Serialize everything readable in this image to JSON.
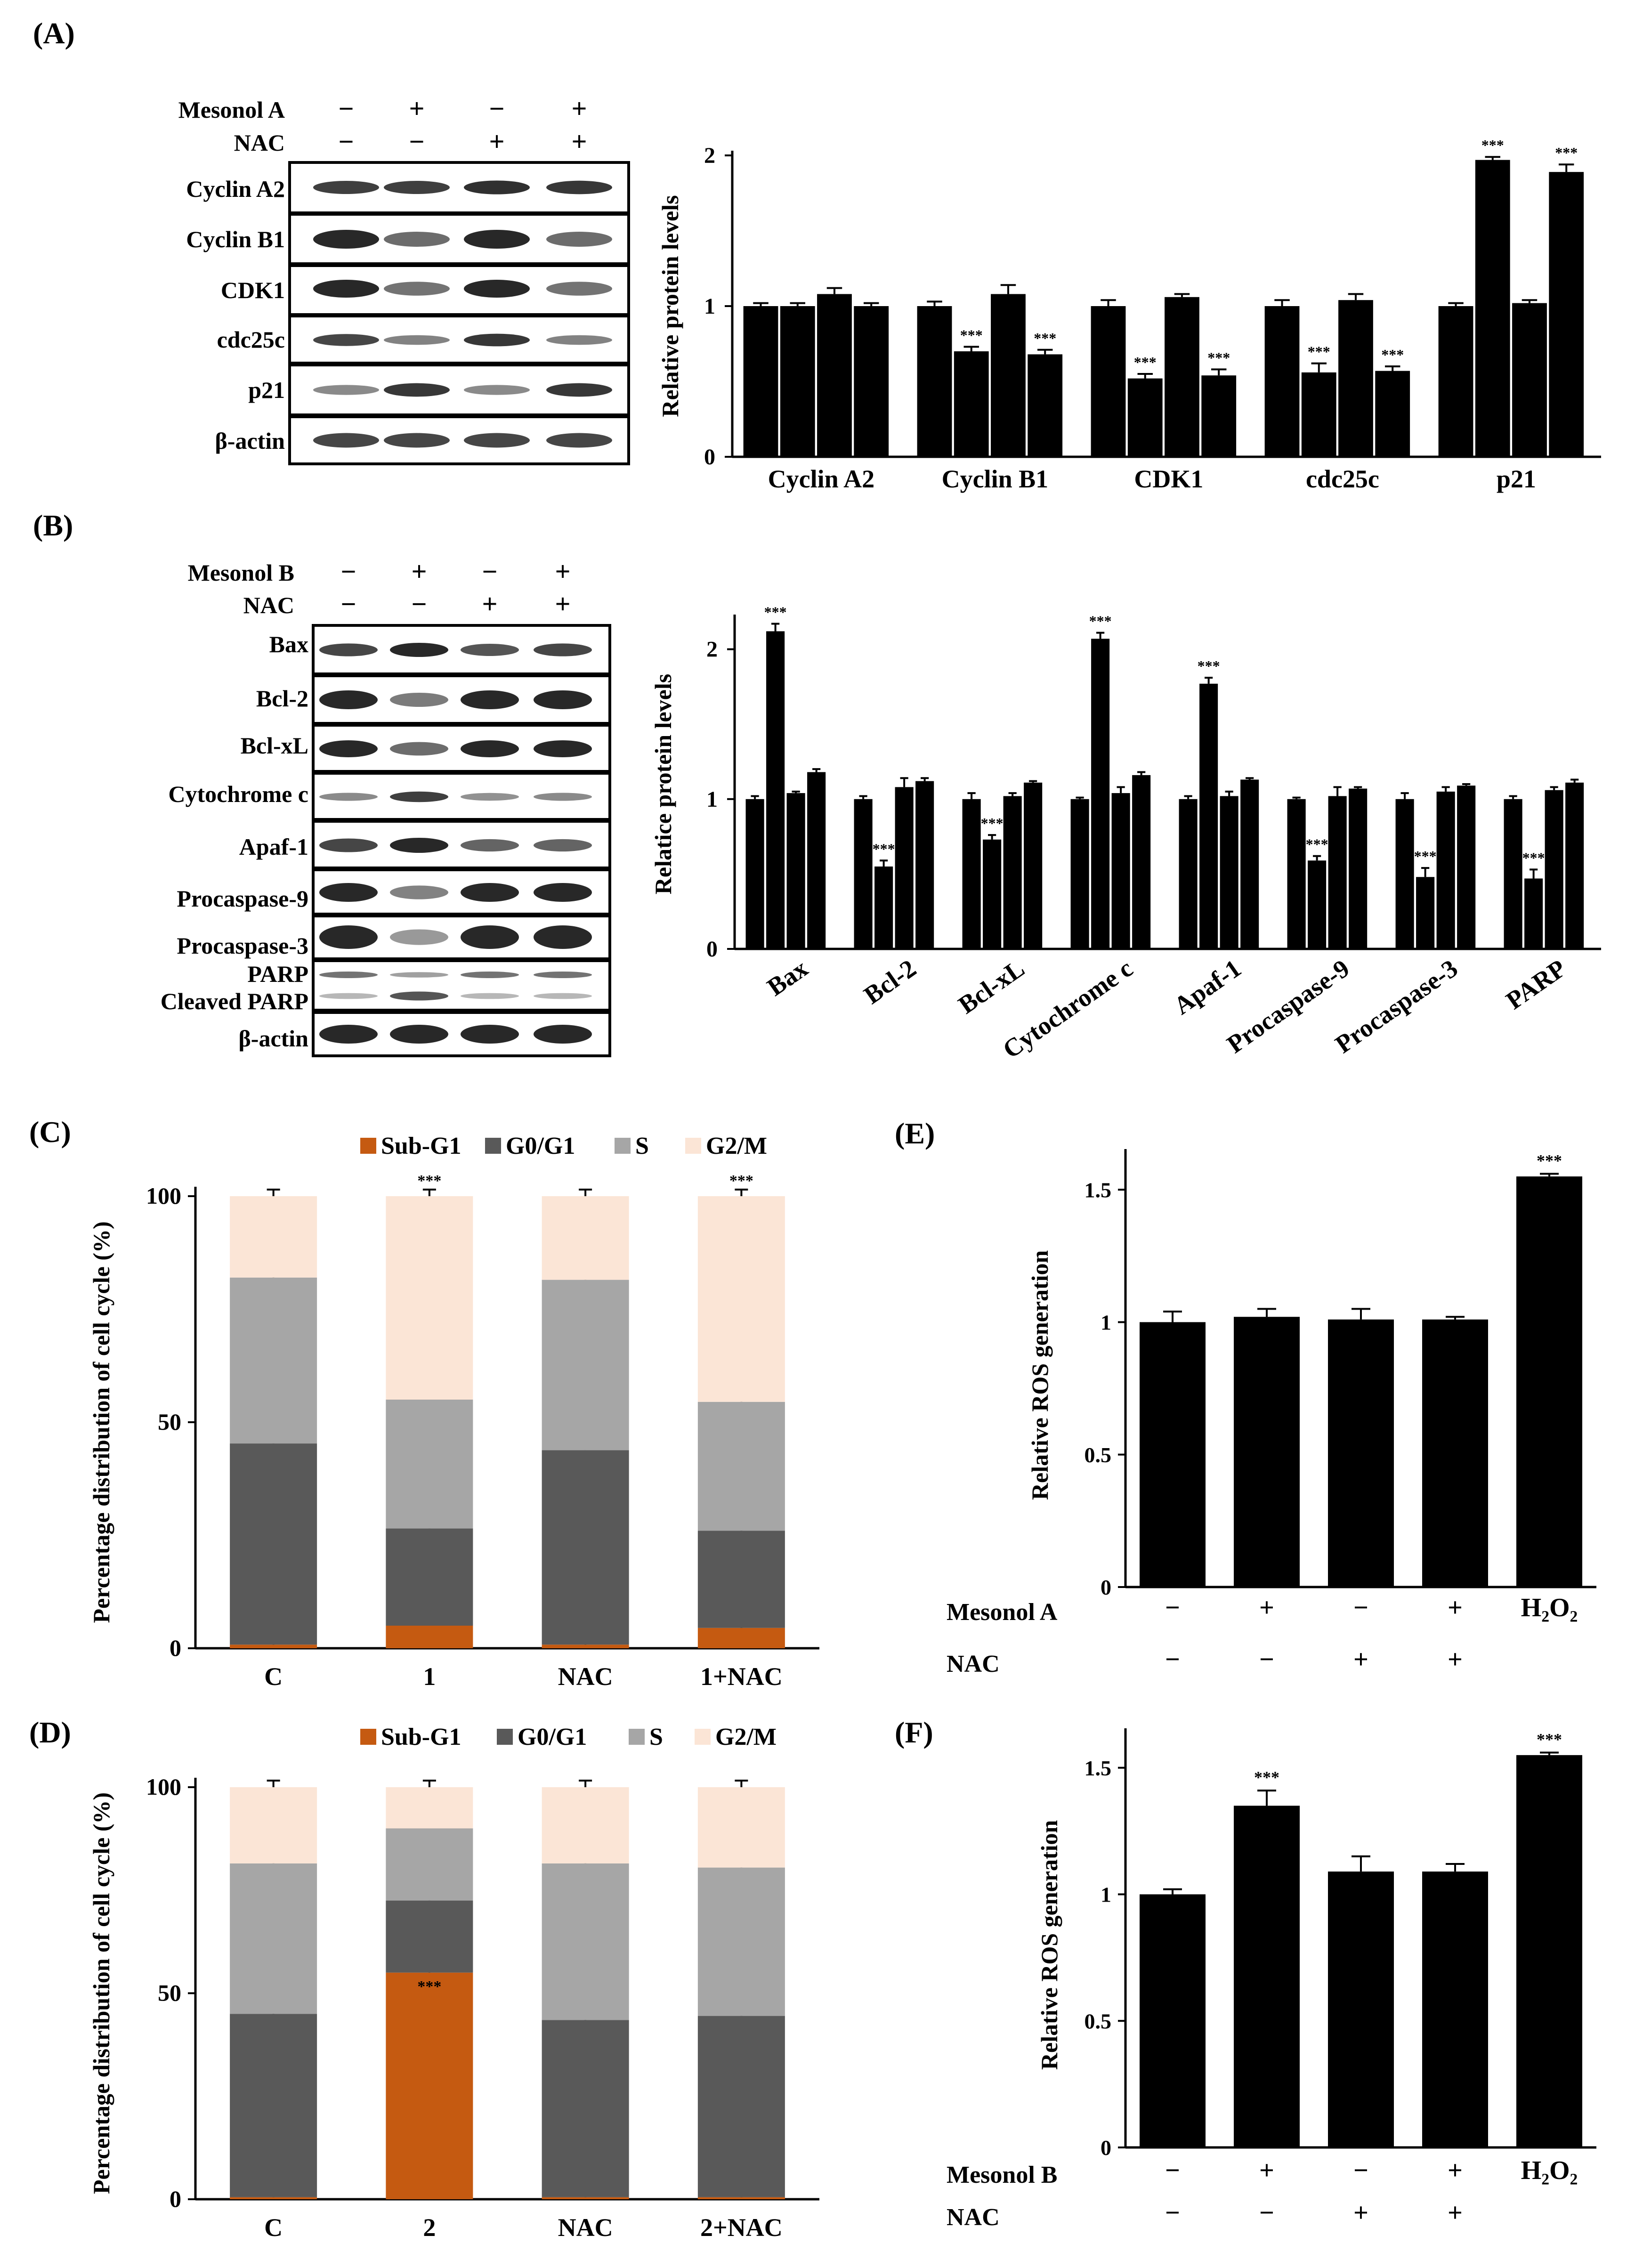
{
  "panels": {
    "A": {
      "label": "(A)",
      "western": {
        "conditions": [
          {
            "name": "Mesonol A",
            "signs": [
              "−",
              "+",
              "−",
              "+"
            ]
          },
          {
            "name": "NAC",
            "signs": [
              "−",
              "−",
              "+",
              "+"
            ]
          }
        ],
        "bands": [
          "Cyclin A2",
          "Cyclin B1",
          "CDK1",
          "cdc25c",
          "p21",
          "β-actin"
        ]
      },
      "bar": {
        "ylabel": "Relative protein levels",
        "ylim": [
          0,
          2
        ],
        "yticks": [
          0,
          1,
          2
        ],
        "categories": [
          "Cyclin A2",
          "Cyclin B1",
          "CDK1",
          "cdc25c",
          "p21"
        ],
        "values": [
          [
            1.0,
            1.0,
            1.08,
            1.0
          ],
          [
            1.0,
            0.7,
            1.08,
            0.68
          ],
          [
            1.0,
            0.52,
            1.06,
            0.54
          ],
          [
            1.0,
            0.56,
            1.04,
            0.57
          ],
          [
            1.0,
            1.97,
            1.02,
            1.89
          ]
        ],
        "errors": [
          [
            0.02,
            0.02,
            0.04,
            0.02
          ],
          [
            0.03,
            0.03,
            0.06,
            0.03
          ],
          [
            0.04,
            0.03,
            0.02,
            0.04
          ],
          [
            0.04,
            0.06,
            0.04,
            0.03
          ],
          [
            0.02,
            0.02,
            0.02,
            0.05
          ]
        ],
        "sig": [
          [
            "",
            "",
            "",
            ""
          ],
          [
            "",
            "***",
            "",
            "***"
          ],
          [
            "",
            "***",
            "",
            "***"
          ],
          [
            "",
            "***",
            "",
            "***"
          ],
          [
            "",
            "***",
            "",
            "***"
          ]
        ],
        "color": "#000000"
      }
    },
    "B": {
      "label": "(B)",
      "western": {
        "conditions": [
          {
            "name": "Mesonol B",
            "signs": [
              "−",
              "+",
              "−",
              "+"
            ]
          },
          {
            "name": "NAC",
            "signs": [
              "−",
              "−",
              "+",
              "+"
            ]
          }
        ],
        "bands": [
          "Bax",
          "Bcl-2",
          "Bcl-xL",
          "Cytochrome c",
          "Apaf-1",
          "Procaspase-9",
          "Procaspase-3",
          "PARP",
          "Cleaved PARP",
          "β-actin"
        ]
      },
      "bar": {
        "ylabel": "Relatice protein levels",
        "ylim": [
          0,
          2.2
        ],
        "yticks": [
          0,
          1,
          2
        ],
        "categories": [
          "Bax",
          "Bcl-2",
          "Bcl-xL",
          "Cytochrome c",
          "Apaf-1",
          "Procaspase-9",
          "Procaspase-3",
          "PARP"
        ],
        "values": [
          [
            1.0,
            2.12,
            1.04,
            1.18
          ],
          [
            1.0,
            0.55,
            1.08,
            1.12
          ],
          [
            1.0,
            0.73,
            1.02,
            1.11
          ],
          [
            1.0,
            2.07,
            1.04,
            1.16
          ],
          [
            1.0,
            1.77,
            1.02,
            1.13
          ],
          [
            1.0,
            0.59,
            1.02,
            1.07
          ],
          [
            1.0,
            0.48,
            1.05,
            1.09
          ],
          [
            1.0,
            0.47,
            1.06,
            1.11
          ]
        ],
        "errors": [
          [
            0.02,
            0.05,
            0.01,
            0.02
          ],
          [
            0.02,
            0.04,
            0.06,
            0.02
          ],
          [
            0.04,
            0.03,
            0.02,
            0.01
          ],
          [
            0.01,
            0.04,
            0.04,
            0.02
          ],
          [
            0.02,
            0.04,
            0.03,
            0.01
          ],
          [
            0.01,
            0.03,
            0.06,
            0.01
          ],
          [
            0.04,
            0.06,
            0.03,
            0.01
          ],
          [
            0.02,
            0.06,
            0.02,
            0.02
          ]
        ],
        "sig": [
          [
            "",
            "***",
            "",
            ""
          ],
          [
            "",
            "***",
            "",
            ""
          ],
          [
            "",
            "***",
            "",
            ""
          ],
          [
            "",
            "***",
            "",
            ""
          ],
          [
            "",
            "***",
            "",
            ""
          ],
          [
            "",
            "***",
            "",
            ""
          ],
          [
            "",
            "***",
            "",
            ""
          ],
          [
            "",
            "***",
            "",
            ""
          ]
        ],
        "color": "#000000"
      }
    },
    "C": {
      "label": "(C)",
      "ylabel": "Percentage distribution of cell cycle (%)",
      "ylim": [
        0,
        100
      ],
      "yticks": [
        0,
        50,
        100
      ],
      "categories": [
        "C",
        "1",
        "NAC",
        "1+NAC"
      ],
      "legend": [
        "Sub-G1",
        "G0/G1",
        "S",
        "G2/M"
      ],
      "stacks": [
        [
          0.8,
          44.5,
          36.7,
          18.0
        ],
        [
          5.0,
          21.5,
          28.5,
          45.0
        ],
        [
          0.8,
          43.0,
          37.7,
          18.5
        ],
        [
          4.5,
          21.5,
          28.5,
          45.5
        ]
      ],
      "errors": [
        1.5,
        1.5,
        1.5,
        2.0
      ],
      "sig": [
        "",
        "***",
        "",
        "***"
      ]
    },
    "D": {
      "label": "(D)",
      "ylabel": "Percentage distribution of cell cycle (%)",
      "ylim": [
        0,
        100
      ],
      "yticks": [
        0,
        50,
        100
      ],
      "categories": [
        "C",
        "2",
        "NAC",
        "2+NAC"
      ],
      "legend": [
        "Sub-G1",
        "G0/G1",
        "S",
        "G2/M"
      ],
      "stacks": [
        [
          0.5,
          44.5,
          36.5,
          18.5
        ],
        [
          55.0,
          17.5,
          17.5,
          10.0
        ],
        [
          0.5,
          43.0,
          38.0,
          18.5
        ],
        [
          0.5,
          44.0,
          36.0,
          19.5
        ]
      ],
      "errors": [
        1.5,
        1.5,
        3.0,
        1.5
      ],
      "sig": [
        "",
        "***",
        "",
        ""
      ]
    },
    "E": {
      "label": "(E)",
      "ylabel": "Relative ROS generation",
      "ylim": [
        0,
        1.6
      ],
      "yticks": [
        "0",
        "0.5",
        "1",
        "1.5"
      ],
      "values": [
        1.0,
        1.02,
        1.01,
        1.01,
        1.55
      ],
      "errors": [
        0.04,
        0.03,
        0.04,
        0.01,
        0.01
      ],
      "sig": [
        "",
        "",
        "",
        "",
        "***"
      ],
      "rows": [
        {
          "name": "Mesonol A",
          "signs": [
            "−",
            "+",
            "−",
            "+",
            "H₂O₂"
          ]
        },
        {
          "name": "NAC",
          "signs": [
            "−",
            "−",
            "+",
            "+",
            ""
          ]
        }
      ]
    },
    "F": {
      "label": "(F)",
      "ylabel": "Relative ROS generation",
      "ylim": [
        0,
        1.6
      ],
      "yticks": [
        "0",
        "0.5",
        "1",
        "1.5"
      ],
      "values": [
        1.0,
        1.35,
        1.09,
        1.09,
        1.55
      ],
      "errors": [
        0.02,
        0.06,
        0.06,
        0.03,
        0.01
      ],
      "sig": [
        "",
        "***",
        "",
        "",
        "***"
      ],
      "rows": [
        {
          "name": "Mesonol B",
          "signs": [
            "−",
            "+",
            "−",
            "+",
            "H₂O₂"
          ]
        },
        {
          "name": "NAC",
          "signs": [
            "−",
            "−",
            "+",
            "+",
            ""
          ]
        }
      ]
    }
  },
  "colors": {
    "bar": "#000000",
    "subg1": "#c55a11",
    "g0g1": "#595959",
    "s": "#a6a6a6",
    "g2m": "#fbe5d6"
  },
  "chart_data": [
    {
      "type": "bar",
      "title": "(A)",
      "ylabel": "Relative protein levels",
      "categories": [
        "Cyclin A2",
        "Cyclin B1",
        "CDK1",
        "cdc25c",
        "p21"
      ],
      "series": [
        {
          "name": "Mesonol A − / NAC −",
          "values": [
            1.0,
            1.0,
            1.0,
            1.0,
            1.0
          ]
        },
        {
          "name": "Mesonol A + / NAC −",
          "values": [
            1.0,
            0.7,
            0.52,
            0.56,
            1.97
          ]
        },
        {
          "name": "Mesonol A − / NAC +",
          "values": [
            1.08,
            1.08,
            1.06,
            1.04,
            1.02
          ]
        },
        {
          "name": "Mesonol A + / NAC +",
          "values": [
            1.0,
            0.68,
            0.54,
            0.57,
            1.89
          ]
        }
      ],
      "ylim": [
        0,
        2
      ]
    },
    {
      "type": "bar",
      "title": "(B)",
      "ylabel": "Relatice protein levels",
      "categories": [
        "Bax",
        "Bcl-2",
        "Bcl-xL",
        "Cytochrome c",
        "Apaf-1",
        "Procaspase-9",
        "Procaspase-3",
        "PARP"
      ],
      "series": [
        {
          "name": "Mesonol B − / NAC −",
          "values": [
            1.0,
            1.0,
            1.0,
            1.0,
            1.0,
            1.0,
            1.0,
            1.0
          ]
        },
        {
          "name": "Mesonol B + / NAC −",
          "values": [
            2.12,
            0.55,
            0.73,
            2.07,
            1.77,
            0.59,
            0.48,
            0.47
          ]
        },
        {
          "name": "Mesonol B − / NAC +",
          "values": [
            1.04,
            1.08,
            1.02,
            1.04,
            1.02,
            1.02,
            1.05,
            1.06
          ]
        },
        {
          "name": "Mesonol B + / NAC +",
          "values": [
            1.18,
            1.12,
            1.11,
            1.16,
            1.13,
            1.07,
            1.09,
            1.11
          ]
        }
      ],
      "ylim": [
        0,
        2.2
      ]
    },
    {
      "type": "bar",
      "title": "(C)",
      "stacked": true,
      "ylabel": "Percentage distribution of cell cycle (%)",
      "categories": [
        "C",
        "1",
        "NAC",
        "1+NAC"
      ],
      "series": [
        {
          "name": "Sub-G1",
          "values": [
            0.8,
            5.0,
            0.8,
            4.5
          ]
        },
        {
          "name": "G0/G1",
          "values": [
            44.5,
            21.5,
            43.0,
            21.5
          ]
        },
        {
          "name": "S",
          "values": [
            36.7,
            28.5,
            37.7,
            28.5
          ]
        },
        {
          "name": "G2/M",
          "values": [
            18.0,
            45.0,
            18.5,
            45.5
          ]
        }
      ],
      "ylim": [
        0,
        100
      ]
    },
    {
      "type": "bar",
      "title": "(D)",
      "stacked": true,
      "ylabel": "Percentage distribution of cell cycle (%)",
      "categories": [
        "C",
        "2",
        "NAC",
        "2+NAC"
      ],
      "series": [
        {
          "name": "Sub-G1",
          "values": [
            0.5,
            55.0,
            0.5,
            0.5
          ]
        },
        {
          "name": "G0/G1",
          "values": [
            44.5,
            17.5,
            43.0,
            44.0
          ]
        },
        {
          "name": "S",
          "values": [
            36.5,
            17.5,
            38.0,
            36.0
          ]
        },
        {
          "name": "G2/M",
          "values": [
            18.5,
            10.0,
            18.5,
            19.5
          ]
        }
      ],
      "ylim": [
        0,
        100
      ]
    },
    {
      "type": "bar",
      "title": "(E)",
      "ylabel": "Relative ROS generation",
      "categories": [
        "−/−",
        "+/−",
        "−/+",
        "+/+",
        "H₂O₂"
      ],
      "values": [
        1.0,
        1.02,
        1.01,
        1.01,
        1.55
      ],
      "ylim": [
        0,
        1.6
      ]
    },
    {
      "type": "bar",
      "title": "(F)",
      "ylabel": "Relative ROS generation",
      "categories": [
        "−/−",
        "+/−",
        "−/+",
        "+/+",
        "H₂O₂"
      ],
      "values": [
        1.0,
        1.35,
        1.09,
        1.09,
        1.55
      ],
      "ylim": [
        0,
        1.6
      ]
    }
  ]
}
